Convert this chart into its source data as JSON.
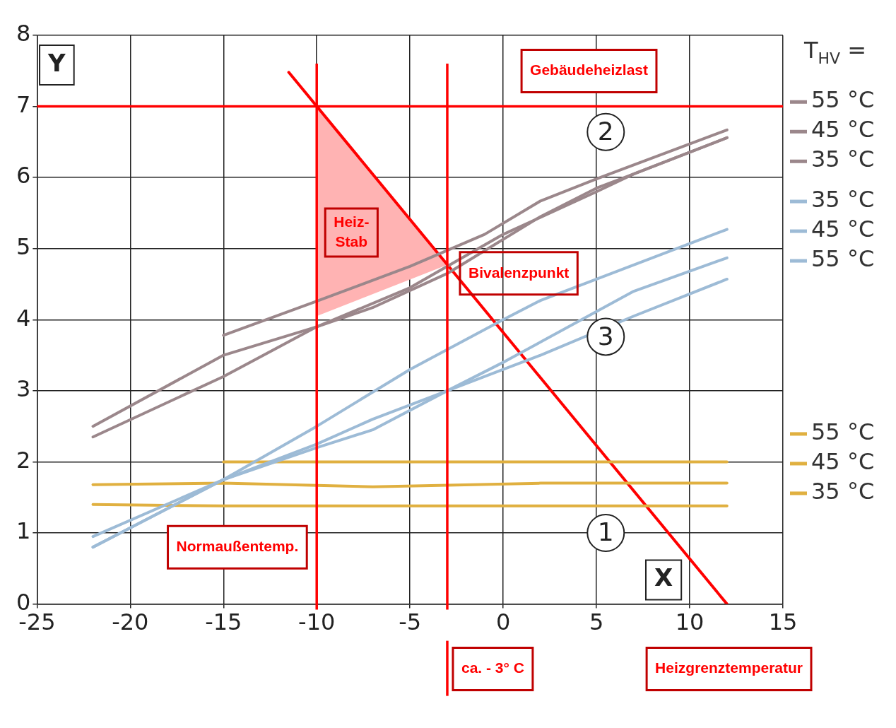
{
  "chart_data": {
    "type": "line",
    "xlabel": "X",
    "ylabel": "Y",
    "legend_title": "T$_{HV}$ =",
    "legend": "right",
    "xlim": [
      -25,
      15
    ],
    "xticks": [
      -25,
      -20,
      -15,
      -10,
      -5,
      0,
      5,
      10,
      15
    ],
    "ylim": [
      0,
      8
    ],
    "yticks": [
      0,
      1,
      2,
      3,
      4,
      5,
      6,
      7,
      8
    ],
    "grid": true,
    "series": [
      {
        "name": "55 °C",
        "color": "#9b878b",
        "x": [
          -15,
          -10,
          -5,
          -1,
          2,
          5,
          12
        ],
        "values": [
          3.78,
          4.26,
          4.75,
          5.2,
          5.67,
          5.98,
          6.67
        ]
      },
      {
        "name": "45 °C",
        "color": "#9b878b",
        "x": [
          -22,
          -15,
          -10,
          -7,
          -3,
          2,
          5,
          7,
          12
        ],
        "values": [
          2.5,
          3.5,
          3.9,
          4.17,
          4.65,
          5.45,
          5.85,
          6.05,
          6.56
        ]
      },
      {
        "name": "35 °C",
        "color": "#9b878b",
        "x": [
          -22,
          -15,
          -10,
          -5,
          0,
          5,
          7,
          12
        ],
        "values": [
          2.35,
          3.2,
          3.9,
          4.45,
          5.2,
          5.8,
          6.05,
          6.56
        ]
      },
      {
        "name": "35 °C",
        "color": "#9dbbd6",
        "x": [
          -22,
          -15,
          -10,
          -5,
          0,
          2,
          12
        ],
        "values": [
          0.95,
          1.75,
          2.5,
          3.3,
          4.0,
          4.27,
          5.27
        ]
      },
      {
        "name": "45 °C",
        "color": "#9dbbd6",
        "x": [
          -22,
          -15,
          -10,
          -7,
          -3,
          0,
          7,
          12
        ],
        "values": [
          0.8,
          1.75,
          2.25,
          2.6,
          3.0,
          3.4,
          4.4,
          4.87
        ]
      },
      {
        "name": "55 °C",
        "color": "#9dbbd6",
        "x": [
          -22,
          -15,
          -10,
          -7,
          -3,
          0,
          2,
          7,
          12
        ],
        "values": [
          0.8,
          1.75,
          2.2,
          2.45,
          3.0,
          3.3,
          3.5,
          4.05,
          4.57
        ]
      },
      {
        "name": "55 °C",
        "color": "#e0b040",
        "x": [
          -15,
          12
        ],
        "values": [
          2.0,
          2.0
        ]
      },
      {
        "name": "45 °C",
        "color": "#e0b040",
        "x": [
          -22,
          -15,
          -10,
          -7,
          2,
          12
        ],
        "values": [
          1.68,
          1.7,
          1.67,
          1.65,
          1.7,
          1.7
        ]
      },
      {
        "name": "35 °C",
        "color": "#e0b040",
        "x": [
          -22,
          -15,
          12
        ],
        "values": [
          1.4,
          1.38,
          1.38
        ]
      },
      {
        "color": "#ff0000",
        "x": [
          -11.5,
          12
        ],
        "values": [
          7.48,
          0
        ]
      },
      {
        "type": "area",
        "name": "Heiz-\nStab",
        "color": "#ffb3b3",
        "x": [
          -10,
          -3,
          -10
        ],
        "values": [
          7,
          4.77,
          4.05
        ]
      }
    ],
    "ref_lines": [
      {
        "axis": "y",
        "value": 7,
        "label": "Gebäudeheizlast",
        "color": "#ff0000"
      },
      {
        "axis": "x",
        "value": -10,
        "label": "Normaußentemp.",
        "color": "#ff0000"
      },
      {
        "axis": "x",
        "value": -3,
        "label": "ca. - 3° C",
        "color": "#ff0000"
      }
    ],
    "annotations": [
      {
        "text": "Bivalenzpunkt",
        "x": -3,
        "y": 4.75
      },
      "Heizgrenztemperatur",
      "2",
      "3",
      "1"
    ]
  }
}
